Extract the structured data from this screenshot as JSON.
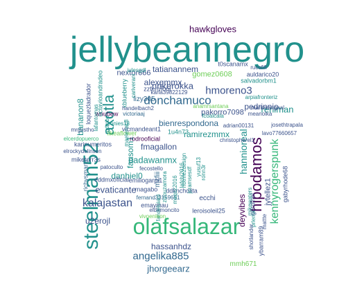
{
  "palette": {
    "purple": "#440154",
    "indigo": "#3b528b",
    "blue": "#31688e",
    "teal": "#21918c",
    "green": "#35b779",
    "lime": "#6ece58",
    "yellowgreen": "#90d743"
  },
  "words": [
    {
      "text": "jellybeannegro",
      "color": "teal"
    },
    {
      "text": "olafsalazar",
      "color": "green"
    },
    {
      "text": "steelman52",
      "color": "teal"
    },
    {
      "text": "axotla",
      "color": "teal"
    },
    {
      "text": "hipodamos",
      "color": "purple"
    },
    {
      "text": "kennyrogerspunk",
      "color": "green"
    },
    {
      "text": "donchamuco",
      "color": "blue"
    },
    {
      "text": "hmoreno3",
      "color": "indigo"
    },
    {
      "text": "kalajastan",
      "color": "indigo"
    },
    {
      "text": "nrikerokka",
      "color": "indigo"
    },
    {
      "text": "angelika885",
      "color": "blue"
    },
    {
      "text": "hawkgloves",
      "color": "purple"
    },
    {
      "text": "jhorgeearz",
      "color": "blue"
    },
    {
      "text": "padawanmx",
      "color": "teal"
    },
    {
      "text": "reniman",
      "color": "teal"
    },
    {
      "text": "tatianannem",
      "color": "indigo"
    },
    {
      "text": "alexgmmx",
      "color": "indigo"
    },
    {
      "text": "hannioreal",
      "color": "teal"
    },
    {
      "text": "evaticante",
      "color": "indigo"
    },
    {
      "text": "fmagallon",
      "color": "indigo"
    },
    {
      "text": "u2erojl",
      "color": "indigo"
    },
    {
      "text": "bananon8",
      "color": "teal"
    },
    {
      "text": "fausom1",
      "color": "teal"
    },
    {
      "text": "danhiel0",
      "color": "teal"
    },
    {
      "text": "ramirezmmx",
      "color": "teal"
    },
    {
      "text": "bienrespondona",
      "color": "blue"
    },
    {
      "text": "pedrinnio",
      "color": "indigo"
    },
    {
      "text": "hassanhdz",
      "color": "indigo"
    },
    {
      "text": "mmh671",
      "color": "lime"
    },
    {
      "text": "deyvibes",
      "color": "purple"
    },
    {
      "text": "gomez0608",
      "color": "lime"
    },
    {
      "text": "pakorro7098",
      "color": "indigo"
    },
    {
      "text": "nextor666",
      "color": "indigo"
    },
    {
      "text": "lizy305",
      "color": "blue"
    },
    {
      "text": "xblueberry",
      "color": "teal"
    },
    {
      "text": "zzfermont",
      "color": "indigo"
    },
    {
      "text": "karla39822129",
      "color": "indigo"
    },
    {
      "text": "wnubew",
      "color": "purple"
    },
    {
      "text": "victoriaaj",
      "color": "blue"
    },
    {
      "text": "mariovangaal",
      "color": "indigo"
    },
    {
      "text": "handelbach2",
      "color": "indigo"
    },
    {
      "text": "anamrsantana",
      "color": "lime"
    },
    {
      "text": "fcoalcala",
      "color": "teal"
    },
    {
      "text": "meanolka",
      "color": "indigo"
    },
    {
      "text": "josethtrapala",
      "color": "indigo"
    },
    {
      "text": "adrian00131",
      "color": "indigo"
    },
    {
      "text": "lavo77660657",
      "color": "indigo"
    },
    {
      "text": "christopherel1",
      "color": "indigo"
    },
    {
      "text": "rodrooficial",
      "color": "purple"
    },
    {
      "text": "vicmandeant1",
      "color": "indigo"
    },
    {
      "text": "conies18",
      "color": "teal"
    },
    {
      "text": "1u4n73",
      "color": "teal"
    },
    {
      "text": "likeaflower",
      "color": "lime"
    },
    {
      "text": "karinumeritos",
      "color": "indigo"
    },
    {
      "text": "miketorr3s",
      "color": "indigo"
    },
    {
      "text": "mzfiii",
      "color": "blue"
    },
    {
      "text": "jytellez1",
      "color": "indigo"
    },
    {
      "text": "patoculto",
      "color": "indigo"
    },
    {
      "text": "fecostello",
      "color": "indigo"
    },
    {
      "text": "eddmxoficial",
      "color": "indigo"
    },
    {
      "text": "emiliogarpi1",
      "color": "indigo"
    },
    {
      "text": "magabo",
      "color": "indigo"
    },
    {
      "text": "fernand33159651",
      "color": "blue"
    },
    {
      "text": "emaymau",
      "color": "indigo"
    },
    {
      "text": "eldemoncito",
      "color": "indigo"
    },
    {
      "text": "leroisoleil25",
      "color": "indigo"
    },
    {
      "text": "ecchi",
      "color": "indigo"
    },
    {
      "text": "ddkncholita",
      "color": "indigo"
    },
    {
      "text": "elcerdopuerco",
      "color": "green"
    },
    {
      "text": "mrgustho",
      "color": "indigo"
    },
    {
      "text": "elrockydelinsen",
      "color": "indigo"
    },
    {
      "text": "richysmart1",
      "color": "blue"
    },
    {
      "text": "loquezladrador",
      "color": "indigo"
    },
    {
      "text": "octavioandradeo",
      "color": "teal"
    },
    {
      "text": "lafantomas",
      "color": "teal"
    },
    {
      "text": "mdmbe",
      "color": "teal"
    },
    {
      "text": "julesgdl",
      "color": "teal"
    },
    {
      "text": "cariverani",
      "color": "teal"
    },
    {
      "text": "t0scanamx",
      "color": "indigo"
    },
    {
      "text": "rucofifi",
      "color": "indigo"
    },
    {
      "text": "auldarico20",
      "color": "indigo"
    },
    {
      "text": "salvadorbm1",
      "color": "teal"
    },
    {
      "text": "arpiafronteriz",
      "color": "teal"
    },
    {
      "text": "maelenac8",
      "color": "teal"
    },
    {
      "text": "zizouzamora",
      "color": "teal"
    },
    {
      "text": "maqsz2016",
      "color": "teal"
    },
    {
      "text": "fandeluiani",
      "color": "teal"
    },
    {
      "text": "vivoenleon",
      "color": "lime"
    },
    {
      "text": "lafchi2016",
      "color": "teal"
    },
    {
      "text": "jcramsesdf",
      "color": "teal"
    },
    {
      "text": "notme2design",
      "color": "teal"
    },
    {
      "text": "yusuf13",
      "color": "teal"
    },
    {
      "text": "ronn3r",
      "color": "teal"
    },
    {
      "text": "gerdinel",
      "color": "indigo"
    },
    {
      "text": "mikewaters",
      "color": "teal"
    },
    {
      "text": "prlemx",
      "color": "teal"
    },
    {
      "text": "mattte",
      "color": "indigo"
    },
    {
      "text": "gabyrhode68",
      "color": "indigo"
    },
    {
      "text": "shotlander",
      "color": "indigo"
    },
    {
      "text": "ybarram89",
      "color": "indigo"
    }
  ]
}
